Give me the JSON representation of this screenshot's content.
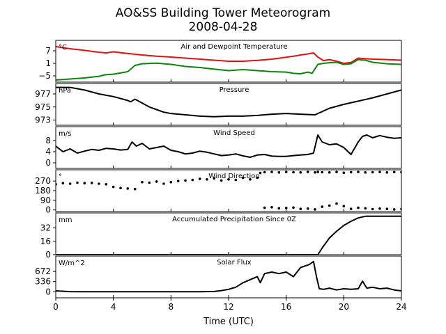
{
  "figure": {
    "title": "AO&SS Building Tower Meteorogram",
    "date": "2008-04-28",
    "xlabel": "Time (UTC)"
  },
  "chart_data": [
    {
      "type": "line",
      "title": "Air and Dewpoint Temperature",
      "unit": "°C",
      "x_ticks": [
        0,
        4,
        8,
        12,
        16,
        20,
        24
      ],
      "y_ticks": [
        7,
        1,
        -5
      ],
      "ylim": [
        -8,
        12
      ],
      "series": [
        {
          "color": "#e41010",
          "x": [
            0,
            1,
            2,
            3,
            3.5,
            4,
            5,
            6,
            7,
            8,
            9,
            10,
            11,
            12,
            13,
            14,
            15,
            16,
            16.5,
            17,
            17.5,
            17.9,
            18.2,
            18.6,
            19,
            19.5,
            20,
            20.5,
            21,
            21.5,
            22,
            23,
            24
          ],
          "values": [
            9,
            8,
            7.2,
            6.3,
            6.0,
            6.5,
            5.7,
            5.0,
            4.4,
            4.0,
            3.5,
            3.0,
            2.5,
            2.0,
            2.0,
            2.4,
            3.0,
            3.9,
            4.4,
            5.0,
            5.5,
            6.0,
            4.0,
            2.3,
            2.8,
            2.0,
            1.0,
            1.4,
            3.5,
            3.2,
            3.0,
            2.8,
            2.5
          ]
        },
        {
          "color": "#0a860a",
          "x": [
            0,
            1,
            2,
            3,
            3.4,
            4,
            5,
            5.5,
            6,
            7,
            8,
            9,
            10,
            11,
            12,
            13,
            14,
            15,
            16,
            16.5,
            17,
            17.5,
            17.8,
            18.2,
            18.6,
            19,
            19.5,
            20,
            20.5,
            21,
            21.5,
            22,
            23,
            24
          ],
          "values": [
            -7,
            -6.5,
            -6,
            -5.2,
            -4.5,
            -4.2,
            -3,
            0,
            0.8,
            1.1,
            0.5,
            -0.5,
            -1.0,
            -1.8,
            -2.5,
            -2.0,
            -2.5,
            -3.0,
            -3.2,
            -3.8,
            -4.0,
            -3.2,
            -3.8,
            0.5,
            1.0,
            1.3,
            1.5,
            0.5,
            0.8,
            2.8,
            2.5,
            1.5,
            0.8,
            0.5
          ]
        }
      ]
    },
    {
      "type": "line",
      "title": "Pressure",
      "unit": "hPa",
      "x_ticks": [
        0,
        4,
        8,
        12,
        16,
        20,
        24
      ],
      "y_ticks": [
        977,
        975,
        973
      ],
      "ylim": [
        972.2,
        978.6
      ],
      "series": [
        {
          "color": "#000000",
          "x": [
            0,
            1,
            2,
            3,
            4,
            5,
            5.2,
            5.5,
            6,
            6.5,
            7,
            7.5,
            8,
            9,
            10,
            11,
            12,
            13,
            14,
            15,
            16,
            17,
            18,
            18.2,
            19,
            20,
            21,
            22,
            23,
            24
          ],
          "values": [
            978.0,
            978.0,
            977.6,
            977.0,
            976.6,
            976.0,
            975.8,
            976.2,
            975.6,
            975.0,
            974.6,
            974.2,
            974.0,
            973.8,
            973.6,
            973.5,
            973.6,
            973.6,
            973.7,
            973.9,
            974.0,
            973.9,
            973.8,
            974.0,
            974.8,
            975.4,
            975.9,
            976.4,
            977.0,
            977.6
          ]
        }
      ]
    },
    {
      "type": "line",
      "title": "Wind Speed",
      "unit": "m/s",
      "x_ticks": [
        0,
        4,
        8,
        12,
        16,
        20,
        24
      ],
      "y_ticks": [
        8,
        4,
        0
      ],
      "ylim": [
        -2,
        13
      ],
      "series": [
        {
          "color": "#000000",
          "x": [
            0,
            0.5,
            1,
            1.5,
            2,
            2.5,
            3,
            3.5,
            4,
            4.5,
            5,
            5.3,
            5.6,
            6,
            6.5,
            7,
            7.5,
            8,
            8.5,
            9,
            9.5,
            10,
            10.5,
            11,
            11.5,
            12,
            12.5,
            13,
            13.5,
            14,
            14.5,
            15,
            15.5,
            16,
            16.5,
            17,
            17.5,
            17.9,
            18.2,
            18.5,
            19,
            19.5,
            20,
            20.5,
            21,
            21.3,
            21.6,
            22,
            22.5,
            23,
            23.5,
            24
          ],
          "values": [
            6,
            4,
            5,
            3.5,
            4.2,
            4.8,
            4.5,
            5.2,
            5,
            4.6,
            4.8,
            7.5,
            6,
            7,
            5,
            5.5,
            6,
            4.5,
            4,
            3.2,
            3.5,
            4.2,
            3.8,
            3.2,
            2.6,
            2.8,
            3.2,
            2.5,
            2.0,
            2.8,
            3.0,
            2.4,
            2.3,
            2.3,
            2.6,
            2.8,
            3.0,
            3.5,
            10,
            7.5,
            6.5,
            6.8,
            5.5,
            3.0,
            7.5,
            9.5,
            10,
            9.0,
            9.8,
            9.2,
            8.8,
            9.0
          ]
        }
      ]
    },
    {
      "type": "scatter",
      "title": "Wind Direction",
      "unit": "°",
      "x_ticks": [
        0,
        4,
        8,
        12,
        16,
        20,
        24
      ],
      "y_ticks": [
        270,
        180,
        90,
        0
      ],
      "ylim": [
        -15,
        375
      ],
      "series": [
        {
          "color": "#000000",
          "x": [
            0,
            0.5,
            1,
            1.5,
            2,
            2.5,
            3,
            3.5,
            4,
            4.5,
            5,
            5.5,
            6,
            6.5,
            7,
            7.5,
            8,
            8.5,
            9,
            9.5,
            10,
            10.5,
            11,
            11.5,
            12,
            12.5,
            13,
            13.5,
            14,
            14.2,
            14.5,
            15,
            15.5,
            16,
            16.5,
            17,
            17.5,
            18,
            18.2,
            18.5,
            19,
            19.5,
            20,
            20.5,
            21,
            21.5,
            22,
            22.5,
            23,
            23.5,
            24,
            14.5,
            15,
            15.5,
            16,
            16.5,
            17,
            17.5,
            18,
            18.5,
            19,
            19.5,
            20,
            20.5,
            21,
            21.5,
            22,
            22.5,
            23,
            23.5,
            24
          ],
          "values": [
            240,
            250,
            245,
            255,
            250,
            252,
            245,
            240,
            215,
            205,
            200,
            195,
            260,
            255,
            265,
            245,
            260,
            270,
            275,
            280,
            290,
            285,
            295,
            275,
            285,
            280,
            300,
            285,
            300,
            345,
            352,
            355,
            350,
            355,
            352,
            350,
            355,
            350,
            355,
            352,
            350,
            355,
            348,
            353,
            355,
            350,
            352,
            355,
            350,
            354,
            352,
            20,
            25,
            15,
            18,
            22,
            10,
            12,
            5,
            30,
            40,
            60,
            35,
            10,
            20,
            15,
            8,
            12,
            10,
            5,
            8
          ]
        }
      ]
    },
    {
      "type": "area",
      "title": "Accumulated Precipitation Since 0Z",
      "unit": "mm",
      "x_ticks": [
        0,
        4,
        8,
        12,
        16,
        20,
        24
      ],
      "y_ticks": [
        32,
        16,
        0
      ],
      "ylim": [
        0,
        50
      ],
      "series": [
        {
          "color": "#000000",
          "x": [
            0,
            18.2,
            18.5,
            19,
            19.5,
            20,
            20.5,
            21,
            21.5,
            24
          ],
          "values": [
            0,
            0,
            8,
            20,
            28,
            35,
            40,
            44,
            46,
            46
          ]
        }
      ]
    },
    {
      "type": "line",
      "title": "Solar Flux",
      "unit": "W/m^2",
      "x_ticks": [
        0,
        4,
        8,
        12,
        16,
        20,
        24
      ],
      "y_ticks": [
        672,
        336,
        0
      ],
      "ylim": [
        -200,
        1180
      ],
      "series": [
        {
          "color": "#000000",
          "x": [
            0,
            1,
            2,
            4,
            6,
            8,
            10,
            11,
            11.5,
            12,
            12.5,
            13,
            13.5,
            14,
            14.2,
            14.5,
            15,
            15.5,
            16,
            16.5,
            17,
            17.3,
            17.6,
            17.9,
            18.1,
            18.3,
            18.6,
            19,
            19.5,
            20,
            20.5,
            21,
            21.3,
            21.6,
            22,
            22.5,
            23,
            23.5,
            24
          ],
          "values": [
            30,
            5,
            0,
            0,
            0,
            0,
            0,
            10,
            40,
            80,
            150,
            300,
            400,
            500,
            300,
            600,
            650,
            600,
            650,
            500,
            800,
            850,
            900,
            1000,
            500,
            100,
            80,
            120,
            60,
            100,
            80,
            100,
            350,
            120,
            150,
            100,
            120,
            60,
            30
          ]
        }
      ]
    }
  ]
}
